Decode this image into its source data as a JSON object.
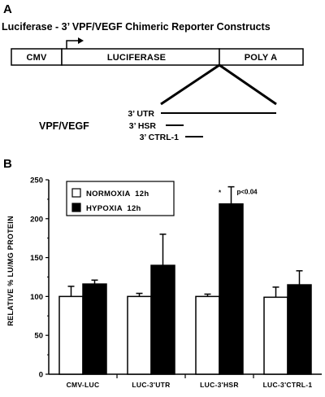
{
  "panel_a": {
    "letter": "A",
    "title": "Luciferase - 3’ VPF/VEGF Chimeric Reporter Constructs",
    "segments": [
      "CMV",
      "LUCIFERASE",
      "POLY A"
    ],
    "vpf_label": "VPF/VEGF",
    "regions": [
      "3’ UTR",
      "3’ HSR",
      "3’ CTRL-1"
    ]
  },
  "panel_b": {
    "letter": "B",
    "annotation_star": "*",
    "annotation_p": "p<0.04"
  },
  "chart_data": {
    "type": "bar",
    "categories": [
      "CMV-LUC",
      "LUC-3'UTR",
      "LUC-3'HSR",
      "LUC-3'CTRL-1"
    ],
    "series": [
      {
        "name": "NORMOXIA  12h",
        "values": [
          100,
          100,
          100,
          99
        ],
        "errors": [
          13,
          4,
          3,
          13
        ],
        "color": "#ffffff"
      },
      {
        "name": "HYPOXIA  12h",
        "values": [
          116,
          140,
          219,
          115
        ],
        "errors": [
          5,
          40,
          22,
          18
        ],
        "color": "#000000"
      }
    ],
    "ylabel": "RELATIVE % LU/MG PROTEIN",
    "xlabel": "",
    "ylim": [
      0,
      250
    ],
    "yticks": [
      0,
      50,
      100,
      150,
      200,
      250
    ],
    "legend_position": "top-left",
    "grid": false
  }
}
